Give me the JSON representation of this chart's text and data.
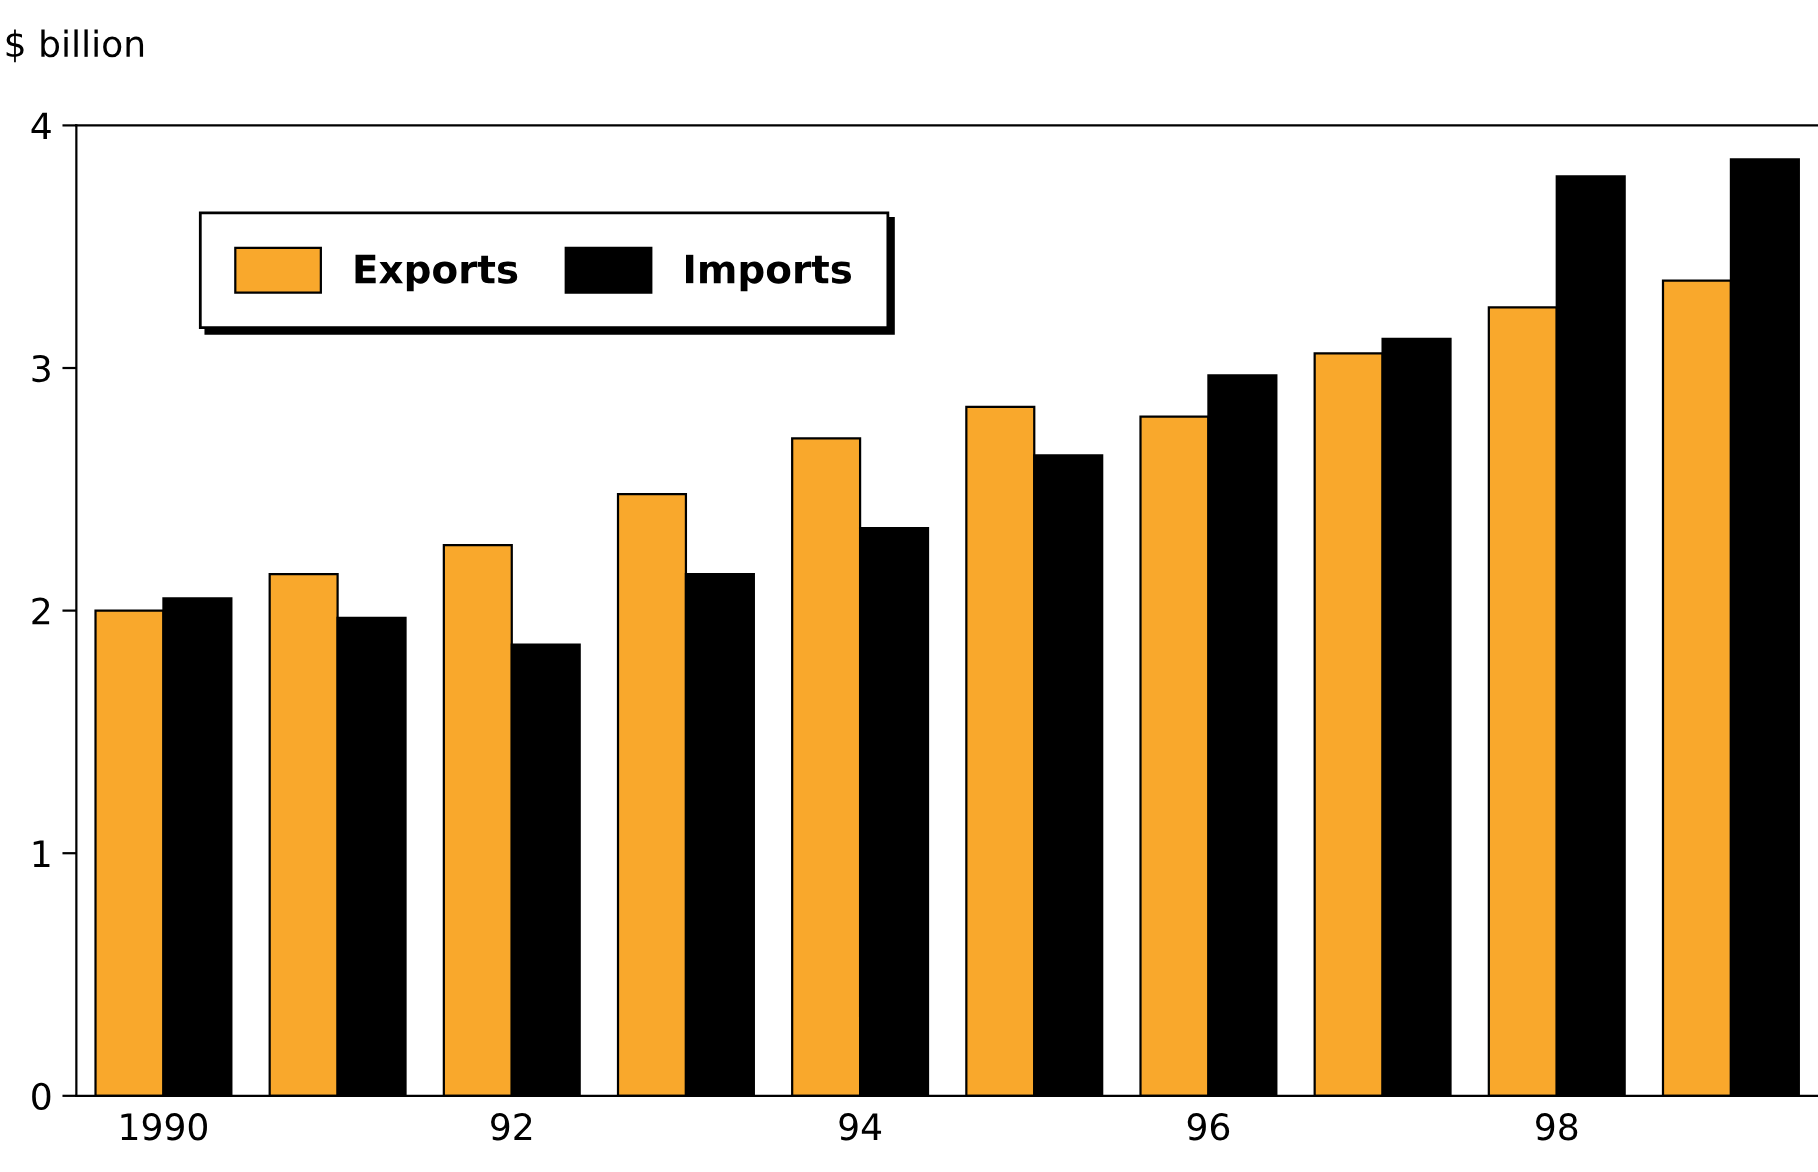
{
  "chart_data": {
    "type": "bar",
    "ylabel": "$ billion",
    "categories": [
      "1990",
      null,
      "92",
      null,
      "94",
      null,
      "96",
      null,
      "98",
      null
    ],
    "series": [
      {
        "name": "Exports",
        "color": "#f9a82c",
        "values": [
          2.0,
          2.15,
          2.27,
          2.48,
          2.71,
          2.84,
          2.8,
          3.06,
          3.25,
          3.36
        ]
      },
      {
        "name": "Imports",
        "color": "#000000",
        "values": [
          2.05,
          1.97,
          1.86,
          2.15,
          2.34,
          2.64,
          2.97,
          3.12,
          3.79,
          3.86
        ]
      }
    ],
    "ylim": [
      0,
      4
    ],
    "yticks": [
      0,
      1,
      2,
      3,
      4
    ],
    "grid": false,
    "legend": "top left"
  }
}
